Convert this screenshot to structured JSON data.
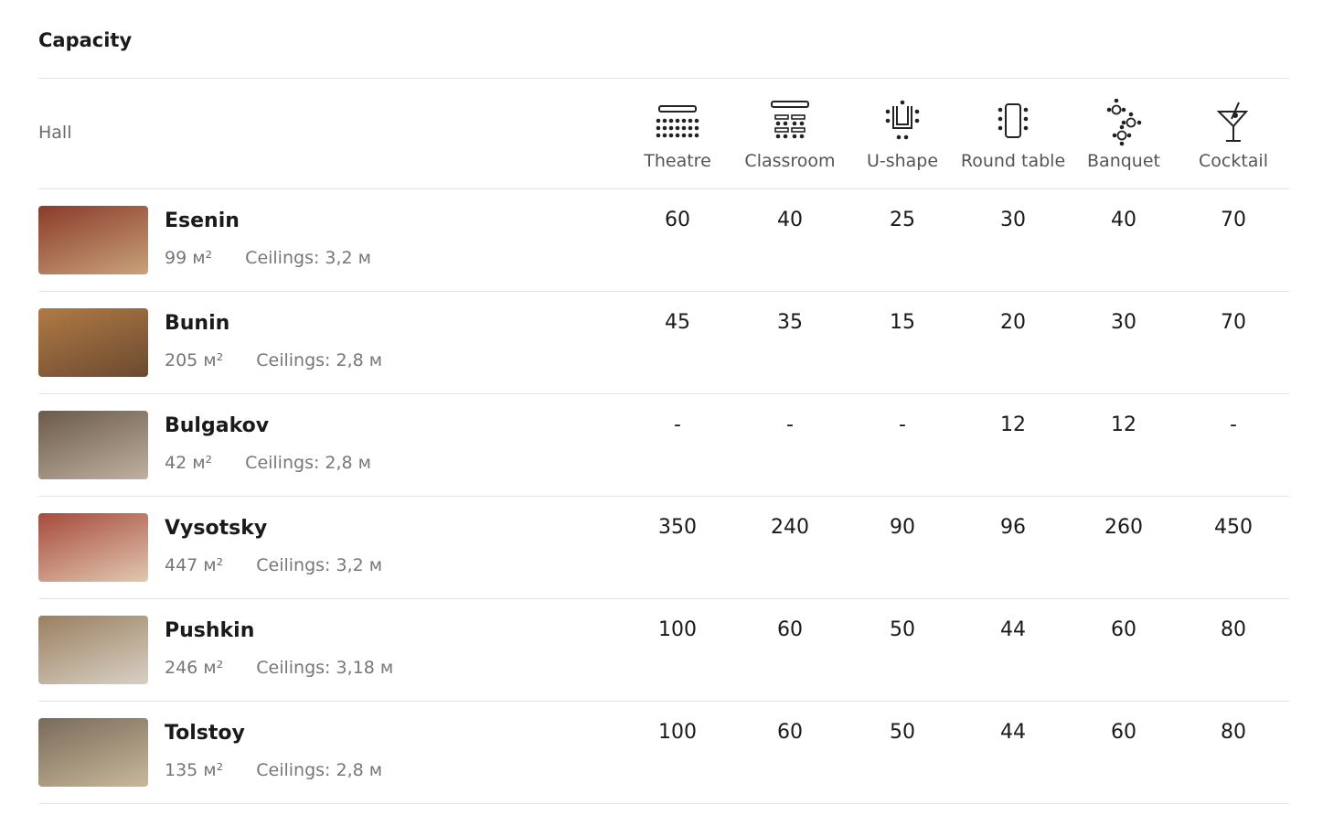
{
  "header": {
    "title": "Capacity"
  },
  "table": {
    "hall_label": "Hall",
    "columns": [
      "Theatre",
      "Classroom",
      "U-shape",
      "Round table",
      "Banquet",
      "Cocktail"
    ],
    "rows": [
      {
        "name": "Esenin",
        "area": "99 м²",
        "ceilings": "Ceilings: 3,2 м",
        "values": [
          60,
          40,
          25,
          30,
          40,
          70
        ]
      },
      {
        "name": "Bunin",
        "area": "205 м²",
        "ceilings": "Ceilings: 2,8 м",
        "values": [
          45,
          35,
          15,
          20,
          30,
          70
        ]
      },
      {
        "name": "Bulgakov",
        "area": "42 м²",
        "ceilings": "Ceilings: 2,8 м",
        "values": [
          "-",
          "-",
          "-",
          12,
          12,
          "-"
        ]
      },
      {
        "name": "Vysotsky",
        "area": "447 м²",
        "ceilings": "Ceilings: 3,2 м",
        "values": [
          350,
          240,
          90,
          96,
          260,
          450
        ]
      },
      {
        "name": "Pushkin",
        "area": "246 м²",
        "ceilings": "Ceilings: 3,18 м",
        "values": [
          100,
          60,
          50,
          44,
          60,
          80
        ]
      },
      {
        "name": "Tolstoy",
        "area": "135 м²",
        "ceilings": "Ceilings: 2,8 м",
        "values": [
          100,
          60,
          50,
          44,
          60,
          80
        ]
      }
    ]
  }
}
